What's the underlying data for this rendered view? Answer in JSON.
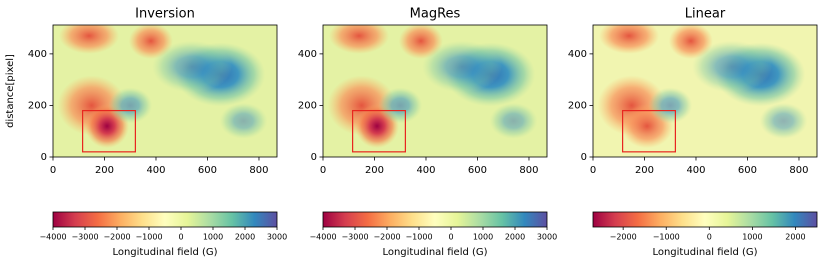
{
  "chart_data": [
    {
      "type": "heatmap",
      "title": "Inversion",
      "ylabel": "distance[pixel]",
      "xlim": [
        0,
        870
      ],
      "xticks": [
        0,
        200,
        400,
        600,
        800
      ],
      "ylim": [
        0,
        512
      ],
      "yticks": [
        0,
        200,
        400
      ],
      "box": {
        "x": [
          115,
          320
        ],
        "y": [
          20,
          180
        ],
        "color": "#e8251f"
      },
      "colorbar": {
        "label": "Longitudinal field (G)",
        "lim": [
          -4000,
          3000
        ],
        "ticks": [
          {
            "value": -4000,
            "label": "−4000"
          },
          {
            "value": -3000,
            "label": "−3000"
          },
          {
            "value": -2000,
            "label": "−2000"
          },
          {
            "value": -1000,
            "label": "−1000"
          },
          0,
          1000,
          2000,
          3000
        ]
      }
    },
    {
      "type": "heatmap",
      "title": "MagRes",
      "xlim": [
        0,
        870
      ],
      "xticks": [
        0,
        200,
        400,
        600,
        800
      ],
      "ylim": [
        0,
        512
      ],
      "yticks": [
        0,
        200,
        400
      ],
      "box": {
        "x": [
          115,
          320
        ],
        "y": [
          20,
          180
        ],
        "color": "#e8251f"
      },
      "colorbar": {
        "label": "Longitudinal field (G)",
        "lim": [
          -4000,
          3000
        ],
        "ticks": [
          {
            "value": -4000,
            "label": "−4000"
          },
          {
            "value": -3000,
            "label": "−3000"
          },
          {
            "value": -2000,
            "label": "−2000"
          },
          {
            "value": -1000,
            "label": "−1000"
          },
          0,
          1000,
          2000,
          3000
        ]
      }
    },
    {
      "type": "heatmap",
      "title": "Linear",
      "xlim": [
        0,
        870
      ],
      "xticks": [
        0,
        200,
        400,
        600,
        800
      ],
      "ylim": [
        0,
        512
      ],
      "yticks": [
        0,
        200,
        400
      ],
      "box": {
        "x": [
          115,
          320
        ],
        "y": [
          20,
          180
        ],
        "color": "#e8251f"
      },
      "colorbar": {
        "label": "Longitudinal field (G)",
        "lim": [
          -2700,
          2500
        ],
        "ticks": [
          {
            "value": -2000,
            "label": "−2000"
          },
          {
            "value": -1000,
            "label": "−1000"
          },
          0,
          1000,
          2000
        ]
      }
    }
  ]
}
